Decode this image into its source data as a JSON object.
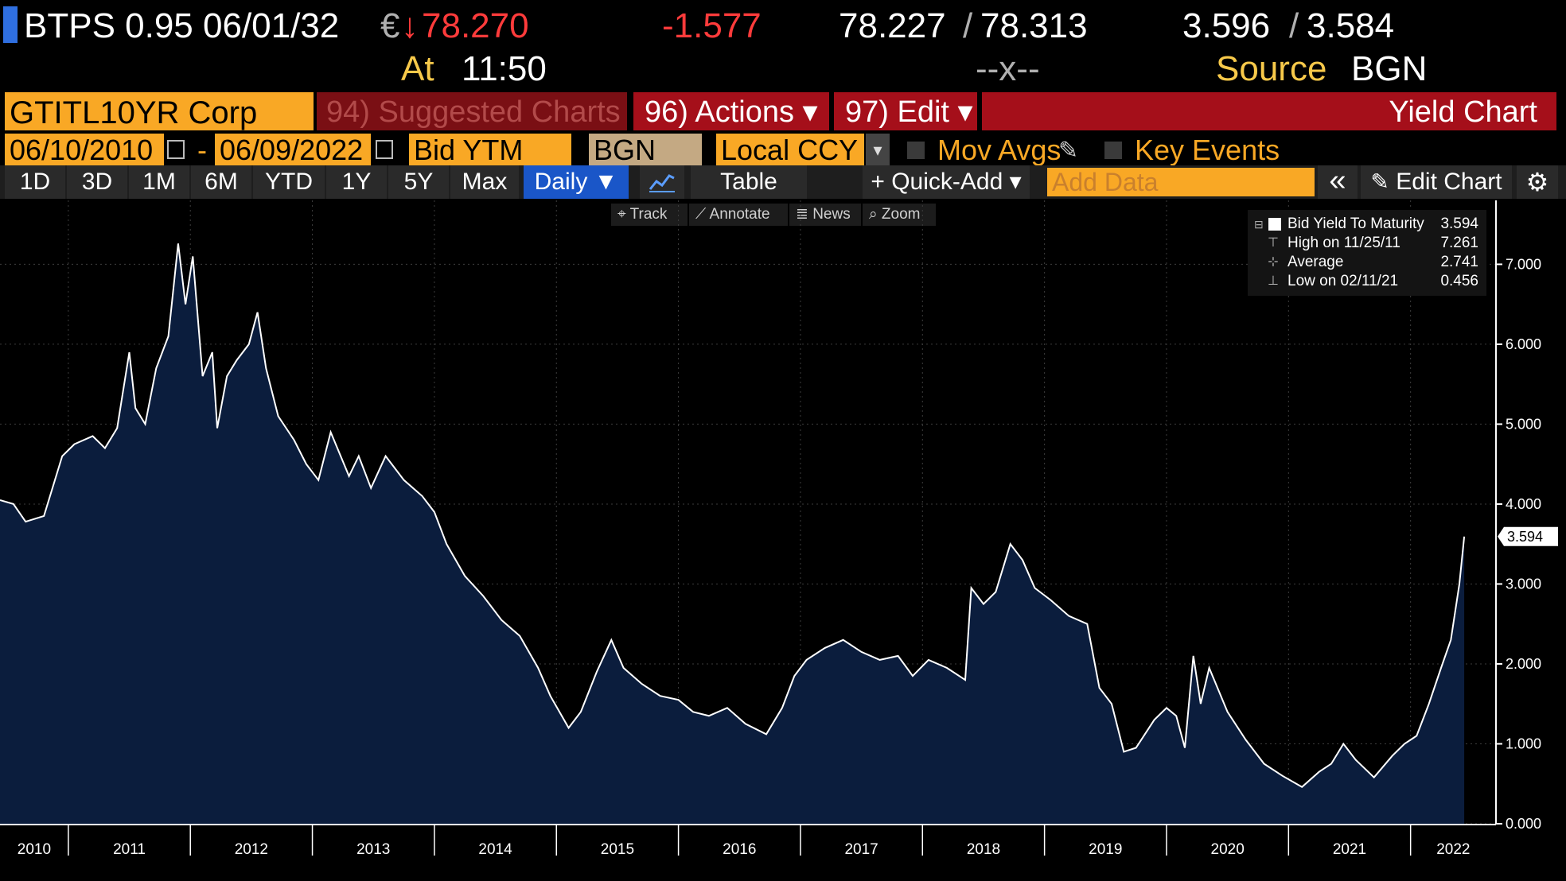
{
  "header": {
    "ticker": "BTPS 0.95 06/01/32",
    "currency": "€",
    "arrow": "↓",
    "price": "78.270",
    "change": "-1.577",
    "bid": "78.227",
    "ask": "78.313",
    "sep": "/",
    "yield_bid": "3.596",
    "yield_ask": "3.584",
    "at_label": "At",
    "time": "11:50",
    "x_label": "--x--",
    "source_label": "Source",
    "source": "BGN"
  },
  "menu": {
    "security": "GTITL10YR Corp",
    "suggested": "94) Suggested Charts",
    "actions": "96) Actions ▾",
    "edit": "97) Edit ▾",
    "title": "Yield Chart"
  },
  "controls": {
    "start_date": "06/10/2010",
    "dash": "-",
    "end_date": "06/09/2022",
    "field": "Bid YTM",
    "source": "BGN",
    "ccy": "Local CCY",
    "mov_avgs": "Mov Avgs",
    "key_events": "Key Events"
  },
  "toolbar": {
    "periods": [
      "1D",
      "3D",
      "1M",
      "6M",
      "YTD",
      "1Y",
      "5Y",
      "Max"
    ],
    "frequency": "Daily ▼",
    "table": "Table",
    "quick_add": "+ Quick-Add ▾",
    "add_data_placeholder": "Add Data",
    "collapse": "«",
    "edit_chart": "Edit Chart"
  },
  "mini_tools": {
    "track": "Track",
    "annotate": "Annotate",
    "news": "News",
    "zoom": "Zoom"
  },
  "legend": {
    "series": "Bid Yield To Maturity",
    "series_value": "3.594",
    "high_label": "High on 11/25/11",
    "high_value": "7.261",
    "avg_label": "Average",
    "avg_value": "2.741",
    "low_label": "Low on 02/11/21",
    "low_value": "0.456"
  },
  "colors": {
    "area_fill": "#0b1d3d",
    "line": "#ffffff",
    "grid": "#3d3d3d",
    "orange": "#f9a825",
    "red": "#ff3b3b"
  },
  "chart_data": {
    "type": "area",
    "title": "Yield Chart",
    "series": [
      {
        "name": "Bid Yield To Maturity",
        "points": [
          [
            2010.44,
            4.05
          ],
          [
            2010.55,
            4.0
          ],
          [
            2010.65,
            3.78
          ],
          [
            2010.8,
            3.85
          ],
          [
            2010.95,
            4.6
          ],
          [
            2011.05,
            4.75
          ],
          [
            2011.2,
            4.85
          ],
          [
            2011.3,
            4.7
          ],
          [
            2011.4,
            4.95
          ],
          [
            2011.5,
            5.9
          ],
          [
            2011.55,
            5.2
          ],
          [
            2011.63,
            5.0
          ],
          [
            2011.72,
            5.7
          ],
          [
            2011.82,
            6.1
          ],
          [
            2011.9,
            7.26
          ],
          [
            2011.96,
            6.5
          ],
          [
            2012.02,
            7.1
          ],
          [
            2012.1,
            5.6
          ],
          [
            2012.18,
            5.9
          ],
          [
            2012.22,
            4.95
          ],
          [
            2012.3,
            5.6
          ],
          [
            2012.38,
            5.8
          ],
          [
            2012.48,
            6.0
          ],
          [
            2012.55,
            6.4
          ],
          [
            2012.62,
            5.7
          ],
          [
            2012.72,
            5.1
          ],
          [
            2012.85,
            4.8
          ],
          [
            2012.95,
            4.5
          ],
          [
            2013.05,
            4.3
          ],
          [
            2013.15,
            4.9
          ],
          [
            2013.3,
            4.35
          ],
          [
            2013.38,
            4.6
          ],
          [
            2013.48,
            4.2
          ],
          [
            2013.6,
            4.6
          ],
          [
            2013.75,
            4.3
          ],
          [
            2013.9,
            4.1
          ],
          [
            2014.0,
            3.9
          ],
          [
            2014.1,
            3.5
          ],
          [
            2014.25,
            3.1
          ],
          [
            2014.4,
            2.85
          ],
          [
            2014.55,
            2.55
          ],
          [
            2014.7,
            2.35
          ],
          [
            2014.85,
            1.95
          ],
          [
            2014.95,
            1.6
          ],
          [
            2015.1,
            1.2
          ],
          [
            2015.2,
            1.4
          ],
          [
            2015.33,
            1.9
          ],
          [
            2015.45,
            2.3
          ],
          [
            2015.55,
            1.95
          ],
          [
            2015.7,
            1.75
          ],
          [
            2015.85,
            1.6
          ],
          [
            2016.0,
            1.55
          ],
          [
            2016.12,
            1.4
          ],
          [
            2016.25,
            1.35
          ],
          [
            2016.4,
            1.45
          ],
          [
            2016.55,
            1.25
          ],
          [
            2016.72,
            1.12
          ],
          [
            2016.85,
            1.45
          ],
          [
            2016.95,
            1.85
          ],
          [
            2017.05,
            2.05
          ],
          [
            2017.2,
            2.2
          ],
          [
            2017.35,
            2.3
          ],
          [
            2017.5,
            2.15
          ],
          [
            2017.65,
            2.05
          ],
          [
            2017.8,
            2.1
          ],
          [
            2017.92,
            1.85
          ],
          [
            2018.05,
            2.05
          ],
          [
            2018.2,
            1.95
          ],
          [
            2018.35,
            1.8
          ],
          [
            2018.4,
            2.95
          ],
          [
            2018.5,
            2.75
          ],
          [
            2018.6,
            2.9
          ],
          [
            2018.72,
            3.5
          ],
          [
            2018.82,
            3.3
          ],
          [
            2018.92,
            2.95
          ],
          [
            2019.05,
            2.8
          ],
          [
            2019.2,
            2.6
          ],
          [
            2019.35,
            2.5
          ],
          [
            2019.45,
            1.7
          ],
          [
            2019.55,
            1.5
          ],
          [
            2019.65,
            0.9
          ],
          [
            2019.75,
            0.95
          ],
          [
            2019.9,
            1.3
          ],
          [
            2020.0,
            1.45
          ],
          [
            2020.08,
            1.35
          ],
          [
            2020.15,
            0.95
          ],
          [
            2020.22,
            2.1
          ],
          [
            2020.28,
            1.5
          ],
          [
            2020.35,
            1.95
          ],
          [
            2020.5,
            1.4
          ],
          [
            2020.65,
            1.05
          ],
          [
            2020.8,
            0.75
          ],
          [
            2020.95,
            0.6
          ],
          [
            2021.11,
            0.46
          ],
          [
            2021.25,
            0.65
          ],
          [
            2021.35,
            0.75
          ],
          [
            2021.45,
            1.0
          ],
          [
            2021.55,
            0.8
          ],
          [
            2021.7,
            0.58
          ],
          [
            2021.85,
            0.85
          ],
          [
            2021.95,
            1.0
          ],
          [
            2022.05,
            1.1
          ],
          [
            2022.15,
            1.5
          ],
          [
            2022.25,
            1.95
          ],
          [
            2022.33,
            2.3
          ],
          [
            2022.4,
            3.0
          ],
          [
            2022.44,
            3.594
          ]
        ]
      }
    ],
    "x_ticks": [
      "2010",
      "2011",
      "2012",
      "2013",
      "2014",
      "2015",
      "2016",
      "2017",
      "2018",
      "2019",
      "2020",
      "2021",
      "2022"
    ],
    "y_ticks": [
      "0.000",
      "1.000",
      "2.000",
      "3.000",
      "4.000",
      "5.000",
      "6.000",
      "7.000"
    ],
    "ylim": [
      0,
      7.8
    ],
    "xlim": [
      2010.44,
      2022.7
    ],
    "last_value_label": "3.594",
    "xlabel": "",
    "ylabel": "",
    "grid": true
  }
}
